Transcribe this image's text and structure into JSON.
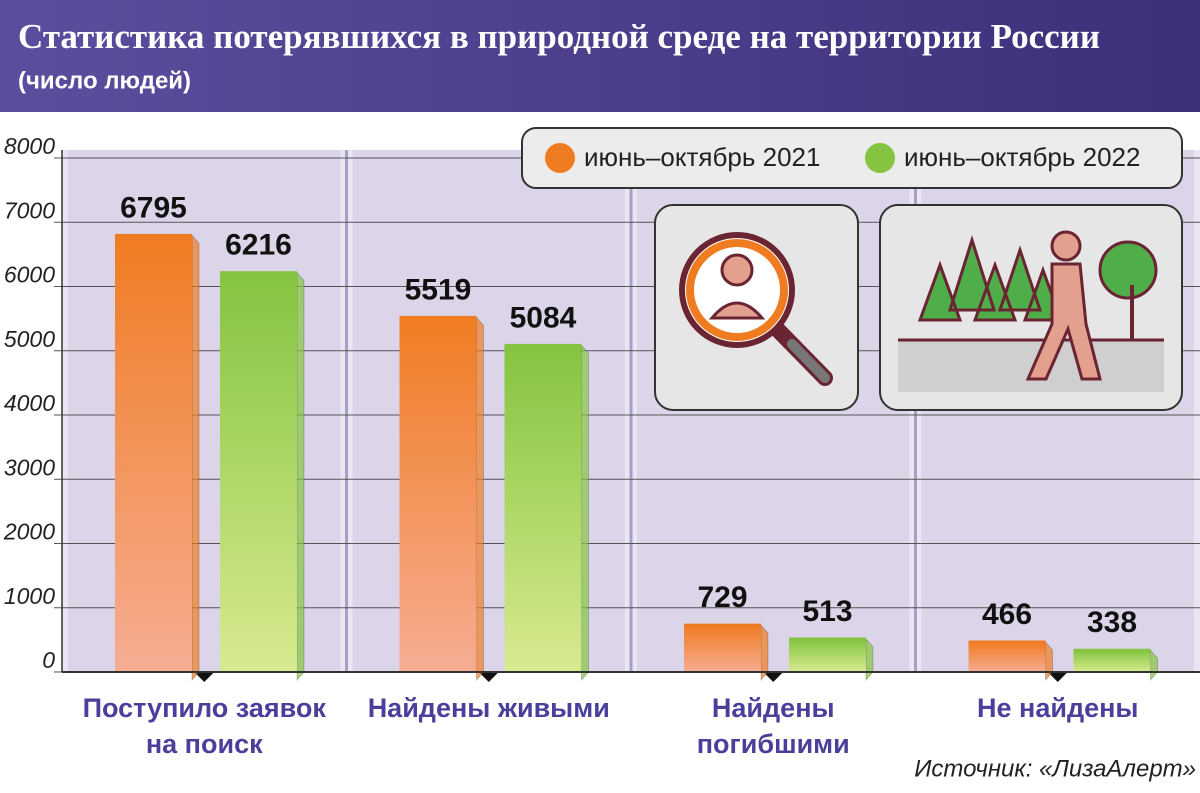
{
  "chart_data": {
    "type": "bar",
    "title": "Статистика потерявшихся в природной среде на территории России",
    "subtitle": "(число людей)",
    "categories": [
      "Поступило заявок на поиск",
      "Найдены живыми",
      "Найдены погибшими",
      "Не найдены"
    ],
    "series": [
      {
        "name": "июнь–октябрь 2021",
        "color": "#f07c22",
        "values": [
          6795,
          5519,
          729,
          466
        ]
      },
      {
        "name": "июнь–октябрь 2022",
        "color": "#84c440",
        "values": [
          6216,
          5084,
          513,
          338
        ]
      }
    ],
    "ylim": [
      0,
      8000
    ],
    "yticks": [
      0,
      1000,
      2000,
      3000,
      4000,
      5000,
      6000,
      7000,
      8000
    ],
    "grid": true,
    "source": "Источник: «ЛизаАлерт»"
  }
}
